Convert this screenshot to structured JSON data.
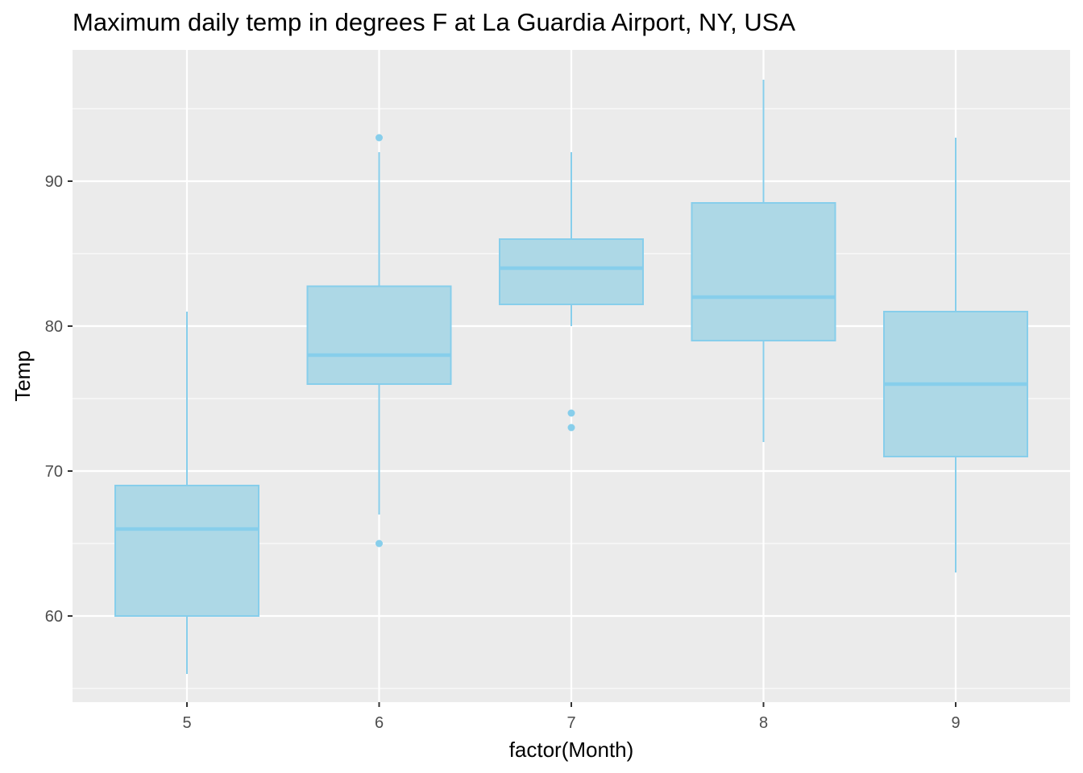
{
  "chart_data": {
    "type": "box",
    "title": "Maximum daily temp in degrees F at La Guardia Airport, NY, USA",
    "xlabel": "factor(Month)",
    "ylabel": "Temp",
    "categories": [
      "5",
      "6",
      "7",
      "8",
      "9"
    ],
    "y_ticks": [
      60,
      70,
      80,
      90
    ],
    "ylim": [
      54,
      99
    ],
    "grid": true,
    "box_fill": "#add8e6",
    "box_stroke": "#87ceeb",
    "panel_background": "#ebebeb",
    "grid_color": "#ffffff",
    "boxes": [
      {
        "category": "5",
        "whisker_low": 56,
        "q1": 60,
        "median": 66,
        "q3": 69,
        "whisker_high": 81,
        "outliers": []
      },
      {
        "category": "6",
        "whisker_low": 67,
        "q1": 76,
        "median": 78,
        "q3": 82.75,
        "whisker_high": 92,
        "outliers": [
          93,
          65
        ]
      },
      {
        "category": "7",
        "whisker_low": 80,
        "q1": 81.5,
        "median": 84,
        "q3": 86,
        "whisker_high": 92,
        "outliers": [
          74,
          73
        ]
      },
      {
        "category": "8",
        "whisker_low": 72,
        "q1": 79,
        "median": 82,
        "q3": 88.5,
        "whisker_high": 97,
        "outliers": []
      },
      {
        "category": "9",
        "whisker_low": 63,
        "q1": 71,
        "median": 76,
        "q3": 81,
        "whisker_high": 93,
        "outliers": []
      }
    ]
  }
}
